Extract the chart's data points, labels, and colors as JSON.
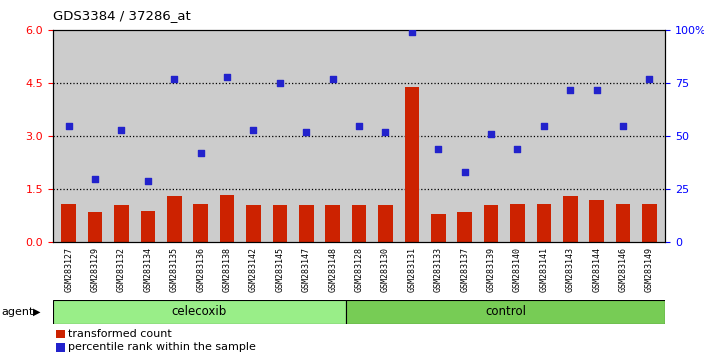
{
  "title": "GDS3384 / 37286_at",
  "samples": [
    "GSM283127",
    "GSM283129",
    "GSM283132",
    "GSM283134",
    "GSM283135",
    "GSM283136",
    "GSM283138",
    "GSM283142",
    "GSM283145",
    "GSM283147",
    "GSM283148",
    "GSM283128",
    "GSM283130",
    "GSM283131",
    "GSM283133",
    "GSM283137",
    "GSM283139",
    "GSM283140",
    "GSM283141",
    "GSM283143",
    "GSM283144",
    "GSM283146",
    "GSM283149"
  ],
  "celecoxib_count": 11,
  "control_count": 12,
  "bar_values": [
    1.1,
    0.85,
    1.05,
    0.9,
    1.3,
    1.1,
    1.35,
    1.05,
    1.05,
    1.05,
    1.05,
    1.05,
    1.05,
    4.4,
    0.8,
    0.85,
    1.05,
    1.1,
    1.1,
    1.3,
    1.2,
    1.1,
    1.1
  ],
  "scatter_values_pct": [
    55,
    30,
    53,
    29,
    77,
    42,
    78,
    53,
    75,
    52,
    77,
    55,
    52,
    99,
    44,
    33,
    51,
    44,
    55,
    72,
    72,
    55,
    77
  ],
  "ylim_left": [
    0,
    6
  ],
  "ylim_right": [
    0,
    100
  ],
  "yticks_left": [
    0,
    1.5,
    3.0,
    4.5,
    6
  ],
  "yticks_right": [
    0,
    25,
    50,
    75,
    100
  ],
  "bar_color": "#cc2200",
  "scatter_color": "#2222cc",
  "bg_color": "#cccccc",
  "sample_bg_color": "#c8c8c8",
  "celecoxib_color": "#99ee88",
  "control_color": "#77cc55",
  "agent_label": "agent",
  "celecoxib_label": "celecoxib",
  "control_label": "control",
  "legend_bar": "transformed count",
  "legend_scatter": "percentile rank within the sample"
}
